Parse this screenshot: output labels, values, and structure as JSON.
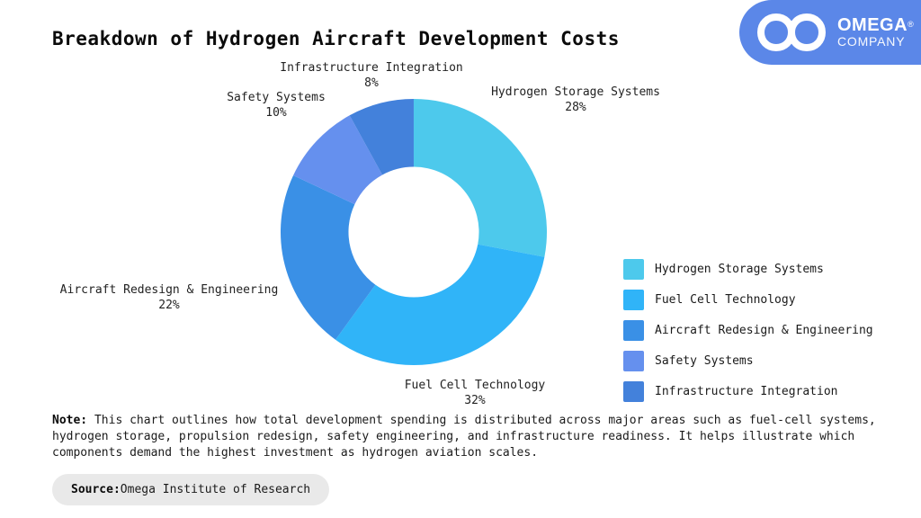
{
  "page": {
    "title": "Breakdown of Hydrogen Aircraft Development Costs",
    "background": "#ffffff"
  },
  "logo": {
    "brand": "OMEGA",
    "registered": "®",
    "subtitle": "COMPANY",
    "bg_color": "#5b87e8",
    "icon": "infinity-icon",
    "icon_color": "#ffffff"
  },
  "chart_data": {
    "type": "pie",
    "donut": true,
    "inner_radius_ratio": 0.49,
    "start_angle": "top",
    "direction": "clockwise",
    "title": "Breakdown of Hydrogen Aircraft Development Costs",
    "categories": [
      "Hydrogen Storage Systems",
      "Fuel Cell Technology",
      "Aircraft Redesign & Engineering",
      "Safety Systems",
      "Infrastructure Integration"
    ],
    "values": [
      28,
      32,
      22,
      10,
      8
    ],
    "unit": "%",
    "colors": [
      "#4dc9ec",
      "#30b4f8",
      "#3a90e6",
      "#6590ee",
      "#4381db"
    ],
    "legend_position": "right",
    "label_color": "#222222"
  },
  "note": {
    "label": "Note:",
    "text": " This chart outlines how total development spending is distributed across major areas such as fuel-cell systems, hydrogen storage, propulsion redesign, safety engineering, and infrastructure readiness. It helps illustrate which components demand the highest investment as hydrogen aviation scales."
  },
  "source": {
    "label": "Source:",
    "text": " Omega Institute of Research"
  }
}
